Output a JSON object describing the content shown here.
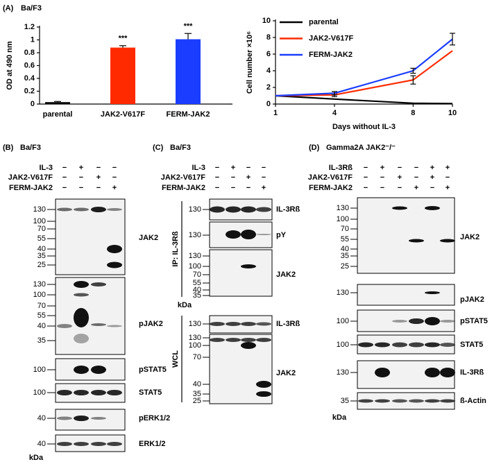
{
  "chart_data": [
    {
      "type": "bar",
      "panel": "(A)",
      "subtitle": "Ba/F3",
      "y_label": "OD at 490 nm",
      "categories": [
        "parental",
        "JAK2-V617F",
        "FERM-JAK2"
      ],
      "values": [
        0.03,
        0.88,
        1.01
      ],
      "errors": [
        0.01,
        0.03,
        0.09
      ],
      "colors": [
        "#000000",
        "#ff2a00",
        "#1a3dff"
      ],
      "annotations": [
        {
          "x": "JAK2-V617F",
          "text": "***"
        },
        {
          "x": "FERM-JAK2",
          "text": "***"
        }
      ],
      "ylim": [
        0,
        1.2
      ],
      "yticks": [
        0,
        0.2,
        0.4,
        0.6,
        0.8,
        1,
        1.2
      ]
    },
    {
      "type": "line",
      "x_label": "Days without IL-3",
      "y_label": "Cell number ×10⁶",
      "x": [
        1,
        4,
        8,
        10
      ],
      "xlim": [
        1,
        10
      ],
      "xticks": [
        1,
        4,
        8,
        10
      ],
      "ylim": [
        0,
        10
      ],
      "yticks": [
        0,
        2,
        4,
        6,
        8,
        10
      ],
      "legend": "upper left",
      "series": [
        {
          "name": "parental",
          "color": "#000000",
          "values": [
            1,
            0.6,
            0.1,
            0.05
          ]
        },
        {
          "name": "JAK2-V617F",
          "color": "#ff2a00",
          "values": [
            1,
            1.1,
            2.9,
            6.4
          ],
          "errors": [
            null,
            0.2,
            0.5,
            null
          ]
        },
        {
          "name": "FERM-JAK2",
          "color": "#1a3dff",
          "values": [
            1,
            1.3,
            4.0,
            7.8
          ],
          "errors": [
            null,
            0.2,
            0.3,
            0.7
          ]
        }
      ]
    }
  ],
  "blots": [
    {
      "label": "(B)",
      "cell": "Ba/F3",
      "kda": "kDa",
      "conditions": [
        {
          "name": "IL-3",
          "signs": [
            "−",
            "+",
            "−",
            "−"
          ]
        },
        {
          "name": "JAK2-V617F",
          "signs": [
            "−",
            "−",
            "+",
            "−"
          ]
        },
        {
          "name": "FERM-JAK2",
          "signs": [
            "−",
            "−",
            "−",
            "+"
          ]
        }
      ],
      "strips": [
        {
          "mw": [
            130,
            100,
            70,
            55,
            40,
            35,
            25
          ],
          "label": "JAK2"
        },
        {
          "mw": [
            130,
            100,
            70,
            55,
            40,
            35
          ],
          "label": "pJAK2"
        },
        {
          "mw": [
            100
          ],
          "label": "pSTAT5"
        },
        {
          "mw": [
            100
          ],
          "label": "STAT5"
        },
        {
          "mw": [
            40
          ],
          "label": "pERK1/2"
        },
        {
          "mw": [
            40
          ],
          "label": "ERK1/2"
        }
      ]
    },
    {
      "label": "(C)",
      "cell": "Ba/F3",
      "kda": "kDa",
      "groups": [
        "IP: IL-3Rß",
        "WCL"
      ],
      "conditions": [
        {
          "name": "IL-3",
          "signs": [
            "−",
            "+",
            "−",
            "−"
          ]
        },
        {
          "name": "JAK2-V617F",
          "signs": [
            "−",
            "−",
            "+",
            "−"
          ]
        },
        {
          "name": "FERM-JAK2",
          "signs": [
            "−",
            "−",
            "−",
            "+"
          ]
        }
      ],
      "strips": [
        {
          "mw": [
            130
          ],
          "label": "IL-3Rß"
        },
        {
          "mw": [
            130
          ],
          "label": "pY"
        },
        {
          "mw": [
            130,
            100,
            70,
            55,
            40,
            35
          ],
          "label": "JAK2"
        },
        {
          "mw": [
            130
          ],
          "label": "IL-3Rß"
        },
        {
          "mw": [
            130,
            100,
            70,
            40,
            35,
            25
          ],
          "label": "JAK2"
        }
      ]
    },
    {
      "label": "(D)",
      "cell": "Gamma2A JAK2⁻/⁻",
      "kda": "kDa",
      "conditions": [
        {
          "name": "IL-3Rß",
          "signs": [
            "−",
            "+",
            "−",
            "−",
            "+",
            "+"
          ]
        },
        {
          "name": "JAK2-V617F",
          "signs": [
            "−",
            "−",
            "+",
            "−",
            "+",
            "−"
          ]
        },
        {
          "name": "FERM-JAK2",
          "signs": [
            "−",
            "−",
            "−",
            "+",
            "−",
            "+"
          ]
        }
      ],
      "strips": [
        {
          "mw": [
            130,
            100,
            70,
            55,
            40,
            35,
            25
          ],
          "label": "JAK2"
        },
        {
          "mw": [
            130
          ],
          "label": "pJAK2"
        },
        {
          "mw": [
            100
          ],
          "label": "pSTAT5"
        },
        {
          "mw": [
            100
          ],
          "label": "STAT5"
        },
        {
          "mw": [
            130
          ],
          "label": "IL-3Rß"
        },
        {
          "mw": [
            35
          ],
          "label": "ß-Actin"
        }
      ]
    }
  ]
}
